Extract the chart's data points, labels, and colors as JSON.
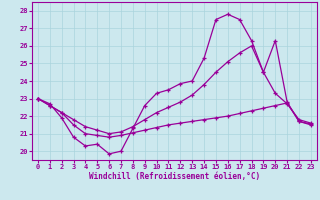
{
  "xlabel": "Windchill (Refroidissement éolien,°C)",
  "background_color": "#cce8ee",
  "grid_color": "#aad4dd",
  "line_color": "#990099",
  "ylim": [
    19.5,
    28.5
  ],
  "xlim": [
    -0.5,
    23.5
  ],
  "yticks": [
    20,
    21,
    22,
    23,
    24,
    25,
    26,
    27,
    28
  ],
  "xticks": [
    0,
    1,
    2,
    3,
    4,
    5,
    6,
    7,
    8,
    9,
    10,
    11,
    12,
    13,
    14,
    15,
    16,
    17,
    18,
    19,
    20,
    21,
    22,
    23
  ],
  "top_x": [
    0,
    1,
    2,
    3,
    4,
    5,
    6,
    7,
    8,
    9,
    10,
    11,
    12,
    13,
    14,
    15,
    16,
    17,
    18,
    19,
    20,
    21,
    22,
    23
  ],
  "top_y": [
    23.0,
    22.7,
    21.9,
    20.8,
    20.3,
    20.4,
    19.85,
    20.0,
    21.3,
    22.6,
    23.3,
    23.5,
    23.85,
    24.0,
    25.3,
    27.5,
    27.8,
    27.5,
    26.3,
    24.5,
    23.3,
    22.7,
    21.8,
    21.6
  ],
  "mid_x": [
    0,
    1,
    2,
    3,
    4,
    5,
    6,
    7,
    8,
    9,
    10,
    11,
    12,
    13,
    14,
    15,
    16,
    17,
    18,
    19,
    20,
    21,
    22,
    23
  ],
  "mid_y": [
    23.0,
    22.6,
    22.2,
    21.8,
    21.4,
    21.2,
    21.0,
    21.1,
    21.4,
    21.8,
    22.2,
    22.5,
    22.8,
    23.2,
    23.8,
    24.5,
    25.1,
    25.6,
    26.0,
    24.5,
    26.3,
    22.8,
    21.7,
    21.5
  ],
  "bot_x": [
    0,
    1,
    2,
    3,
    4,
    5,
    6,
    7,
    8,
    9,
    10,
    11,
    12,
    13,
    14,
    15,
    16,
    17,
    18,
    19,
    20,
    21,
    22,
    23
  ],
  "bot_y": [
    23.0,
    22.6,
    22.2,
    21.5,
    21.0,
    20.9,
    20.8,
    20.9,
    21.05,
    21.2,
    21.35,
    21.5,
    21.6,
    21.7,
    21.8,
    21.9,
    22.0,
    22.15,
    22.3,
    22.45,
    22.6,
    22.75,
    21.7,
    21.55
  ]
}
